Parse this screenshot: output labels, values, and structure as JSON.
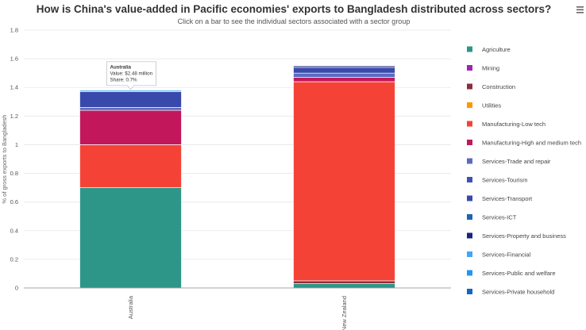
{
  "page": {
    "title": "How is China's value-added in Pacific economies' exports to Bangladesh distributed across sectors?",
    "subtitle": "Click on a bar to see the individual sectors associated with a sector group",
    "menu_icon": "hamburger-menu-icon"
  },
  "tooltip": {
    "category": "Australia",
    "value_text": "Value: $2.48 million",
    "share_text": "Share: 0.7%"
  },
  "chart_data": {
    "type": "bar",
    "stacked": true,
    "title": "How is China's value-added in Pacific economies' exports to Bangladesh distributed across sectors?",
    "subtitle": "Click on a bar to see the individual sectors associated with a sector group",
    "ylabel": "% of gross exports to Bangladesh",
    "xlabel": "",
    "ylim": [
      0,
      1.8
    ],
    "yticks": [
      "0",
      "0.2",
      "0.4",
      "0.6",
      "0.8",
      "1",
      "1.2",
      "1.4",
      "1.6",
      "1.8"
    ],
    "categories": [
      "Australia",
      "New Zealand"
    ],
    "grid": true,
    "legend_position": "right",
    "series": [
      {
        "name": "Agriculture",
        "color": "#2e9688",
        "values": [
          0.7,
          0.03
        ]
      },
      {
        "name": "Mining",
        "color": "#9c27b0",
        "values": [
          0.0,
          0.0
        ]
      },
      {
        "name": "Construction",
        "color": "#8e2c3a",
        "values": [
          0.0,
          0.02
        ]
      },
      {
        "name": "Utilities",
        "color": "#ff9800",
        "values": [
          0.0,
          0.0
        ]
      },
      {
        "name": "Manufacturing-Low tech",
        "color": "#f44336",
        "values": [
          0.3,
          1.39
        ]
      },
      {
        "name": "Manufacturing-High and medium tech",
        "color": "#c2185b",
        "values": [
          0.24,
          0.03
        ]
      },
      {
        "name": "Services-Trade and repair",
        "color": "#5c6bc0",
        "values": [
          0.02,
          0.03
        ]
      },
      {
        "name": "Services-Tourism",
        "color": "#3f51b5",
        "values": [
          0.0,
          0.0
        ]
      },
      {
        "name": "Services-Transport",
        "color": "#3949ab",
        "values": [
          0.11,
          0.04
        ]
      },
      {
        "name": "Services-ICT",
        "color": "#1e63b5",
        "values": [
          0.0,
          0.0
        ]
      },
      {
        "name": "Services-Property and business",
        "color": "#1a237e",
        "values": [
          0.0,
          0.01
        ]
      },
      {
        "name": "Services-Financial",
        "color": "#42a5f5",
        "values": [
          0.01,
          0.0
        ]
      },
      {
        "name": "Services-Public and welfare",
        "color": "#2196f3",
        "values": [
          0.0,
          0.0
        ]
      },
      {
        "name": "Services-Private household",
        "color": "#1565c0",
        "values": [
          0.0,
          0.0
        ]
      }
    ]
  }
}
